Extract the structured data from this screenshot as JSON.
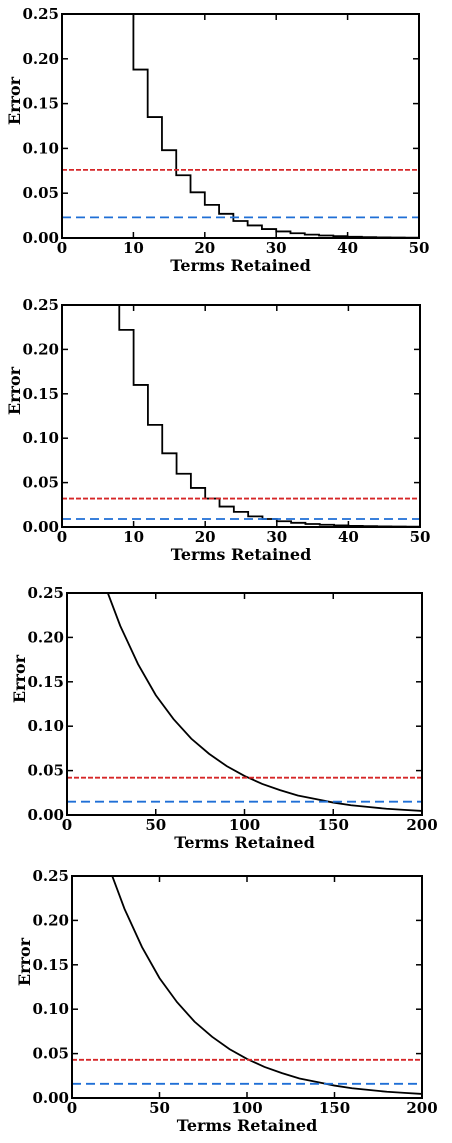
{
  "chart_data": [
    {
      "type": "line",
      "xlabel": "Terms Retained",
      "ylabel": "Error",
      "xlim": [
        0,
        50
      ],
      "ylim": [
        0,
        0.25
      ],
      "xticks": [
        0,
        10,
        20,
        30,
        40,
        50
      ],
      "xtick_labels": [
        "0",
        "10",
        "20",
        "30",
        "40",
        "50"
      ],
      "yticks": [
        0,
        0.05,
        0.1,
        0.15,
        0.2,
        0.25
      ],
      "ytick_labels": [
        "0.00",
        "0.05",
        "0.10",
        "0.15",
        "0.20",
        "0.25"
      ],
      "grid": false,
      "series": [
        {
          "style": "solid-step",
          "color": "#000000",
          "x": [
            8.5,
            10,
            12,
            14,
            16,
            18,
            20,
            22,
            24,
            26,
            28,
            30,
            32,
            34,
            36,
            38,
            40,
            42,
            44,
            46,
            48,
            50
          ],
          "y": [
            0.25,
            0.188,
            0.135,
            0.098,
            0.07,
            0.051,
            0.037,
            0.027,
            0.019,
            0.014,
            0.01,
            0.0073,
            0.0053,
            0.0038,
            0.0028,
            0.002,
            0.0014,
            0.001,
            0.0007,
            0.0005,
            0.0004,
            0.0003
          ]
        },
        {
          "style": "dashed",
          "color": "#d62728",
          "x": [
            0,
            50
          ],
          "y": [
            0.076,
            0.076
          ]
        },
        {
          "style": "dashed",
          "color": "#1f6fd6",
          "x": [
            0,
            50
          ],
          "y": [
            0.023,
            0.023
          ]
        }
      ]
    },
    {
      "type": "line",
      "xlabel": "Terms Retained",
      "ylabel": "Error",
      "xlim": [
        0,
        50
      ],
      "ylim": [
        0,
        0.25
      ],
      "xticks": [
        0,
        10,
        20,
        30,
        40,
        50
      ],
      "xtick_labels": [
        "0",
        "10",
        "20",
        "30",
        "40",
        "50"
      ],
      "yticks": [
        0,
        0.05,
        0.1,
        0.15,
        0.2,
        0.25
      ],
      "ytick_labels": [
        "0.00",
        "0.05",
        "0.10",
        "0.15",
        "0.20",
        "0.25"
      ],
      "grid": false,
      "series": [
        {
          "style": "solid-step",
          "color": "#000000",
          "x": [
            7.5,
            8,
            10,
            12,
            14,
            16,
            18,
            20,
            22,
            24,
            26,
            28,
            30,
            32,
            34,
            36,
            38,
            40,
            42,
            44,
            46,
            48,
            50
          ],
          "y": [
            0.25,
            0.222,
            0.16,
            0.115,
            0.083,
            0.06,
            0.044,
            0.032,
            0.023,
            0.017,
            0.012,
            0.009,
            0.0065,
            0.0047,
            0.0034,
            0.0025,
            0.0018,
            0.0013,
            0.0009,
            0.0007,
            0.0005,
            0.0004,
            0.0003
          ]
        },
        {
          "style": "dashed",
          "color": "#d62728",
          "x": [
            0,
            50
          ],
          "y": [
            0.032,
            0.032
          ]
        },
        {
          "style": "dashed",
          "color": "#1f6fd6",
          "x": [
            0,
            50
          ],
          "y": [
            0.009,
            0.009
          ]
        }
      ]
    },
    {
      "type": "line",
      "xlabel": "Terms Retained",
      "ylabel": "Error",
      "xlim": [
        0,
        200
      ],
      "ylim": [
        0,
        0.25
      ],
      "xticks": [
        0,
        50,
        100,
        150,
        200
      ],
      "xtick_labels": [
        "0",
        "50",
        "100",
        "150",
        "200"
      ],
      "yticks": [
        0,
        0.05,
        0.1,
        0.15,
        0.2,
        0.25
      ],
      "ytick_labels": [
        "0.00",
        "0.05",
        "0.10",
        "0.15",
        "0.20",
        "0.25"
      ],
      "grid": false,
      "series": [
        {
          "style": "solid",
          "color": "#000000",
          "x": [
            23,
            30,
            40,
            50,
            60,
            70,
            80,
            90,
            100,
            110,
            120,
            130,
            140,
            150,
            160,
            170,
            180,
            190,
            200
          ],
          "y": [
            0.25,
            0.213,
            0.17,
            0.135,
            0.108,
            0.086,
            0.069,
            0.055,
            0.044,
            0.035,
            0.028,
            0.022,
            0.018,
            0.014,
            0.011,
            0.009,
            0.007,
            0.0058,
            0.0046
          ]
        },
        {
          "style": "dashed",
          "color": "#d62728",
          "x": [
            0,
            200
          ],
          "y": [
            0.042,
            0.042
          ]
        },
        {
          "style": "dashed",
          "color": "#1f6fd6",
          "x": [
            0,
            200
          ],
          "y": [
            0.015,
            0.015
          ]
        }
      ]
    },
    {
      "type": "line",
      "xlabel": "Terms Retained",
      "ylabel": "Error",
      "xlim": [
        0,
        200
      ],
      "ylim": [
        0,
        0.25
      ],
      "xticks": [
        0,
        50,
        100,
        150,
        200
      ],
      "xtick_labels": [
        "0",
        "50",
        "100",
        "150",
        "200"
      ],
      "yticks": [
        0,
        0.05,
        0.1,
        0.15,
        0.2,
        0.25
      ],
      "ytick_labels": [
        "0.00",
        "0.05",
        "0.10",
        "0.15",
        "0.20",
        "0.25"
      ],
      "grid": false,
      "series": [
        {
          "style": "solid",
          "color": "#000000",
          "x": [
            23,
            30,
            40,
            50,
            60,
            70,
            80,
            90,
            100,
            110,
            120,
            130,
            140,
            150,
            160,
            170,
            180,
            190,
            200
          ],
          "y": [
            0.25,
            0.213,
            0.17,
            0.135,
            0.108,
            0.086,
            0.069,
            0.055,
            0.044,
            0.035,
            0.028,
            0.022,
            0.018,
            0.014,
            0.011,
            0.009,
            0.007,
            0.0058,
            0.0046
          ]
        },
        {
          "style": "dashed",
          "color": "#d62728",
          "x": [
            0,
            200
          ],
          "y": [
            0.043,
            0.043
          ]
        },
        {
          "style": "dashed",
          "color": "#1f6fd6",
          "x": [
            0,
            200
          ],
          "y": [
            0.016,
            0.016
          ]
        }
      ]
    }
  ]
}
